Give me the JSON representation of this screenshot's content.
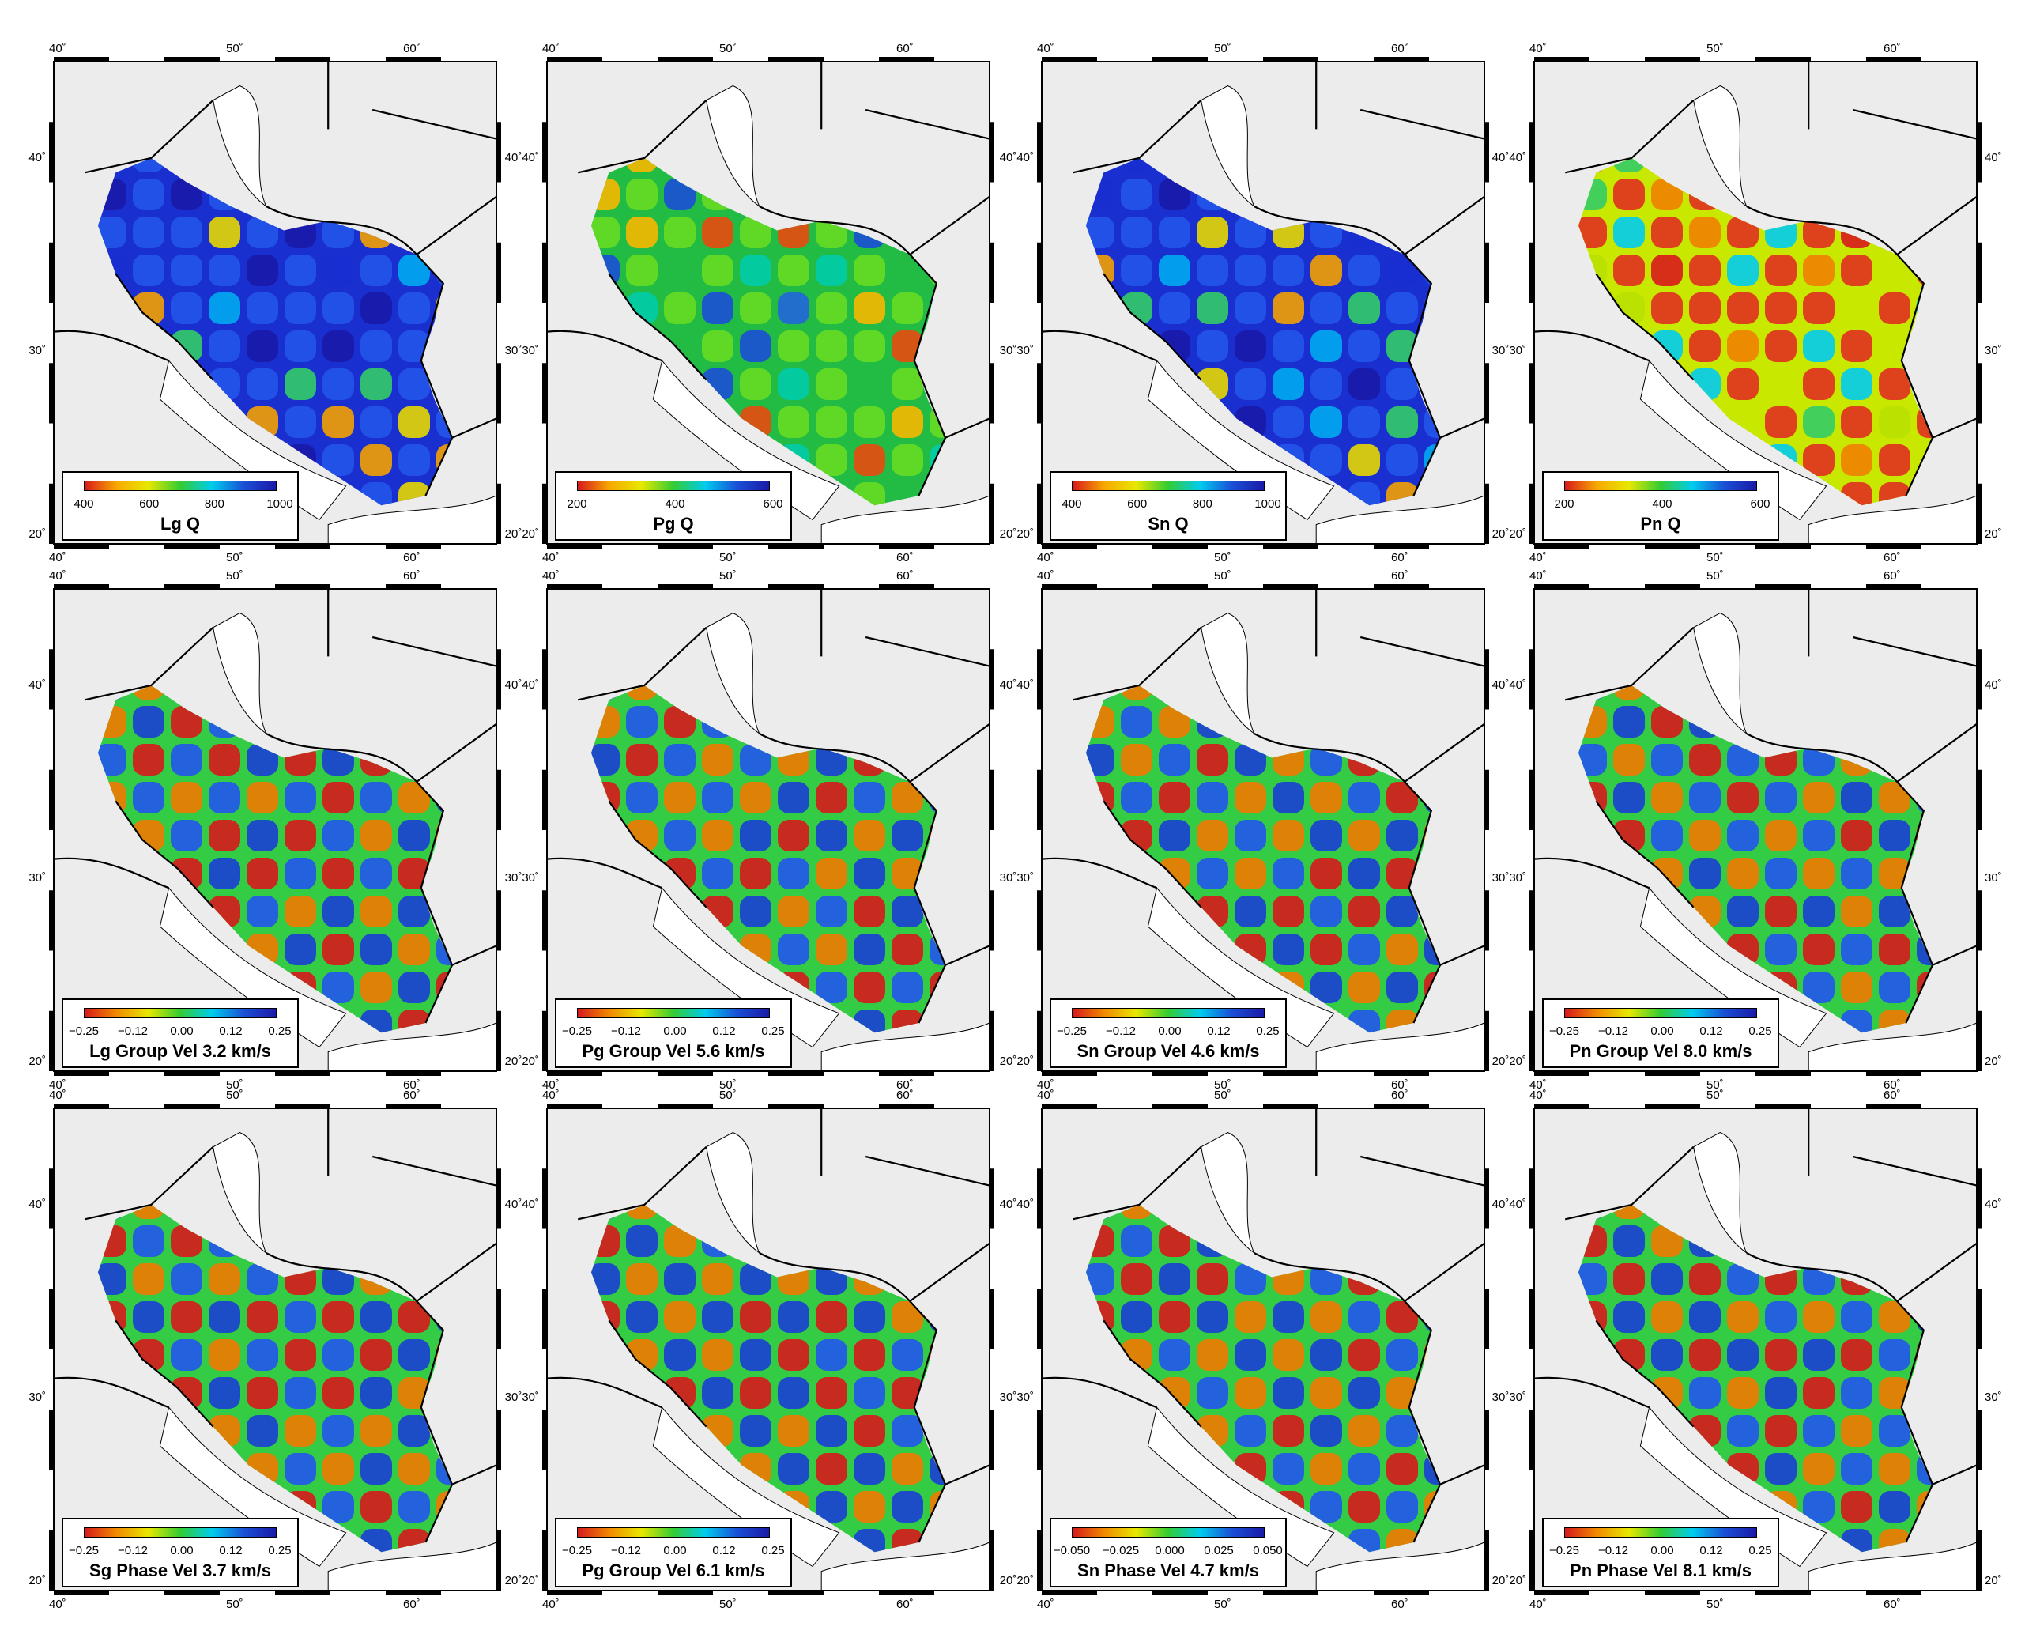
{
  "figure": {
    "panels": [
      {
        "title": "Lg Q",
        "scale_ticks": [
          "400",
          "600",
          "800",
          "1000"
        ],
        "palette": "q",
        "hue_bias": "blue",
        "top_ticks": [
          "40˚",
          "50˚",
          "60˚"
        ],
        "bottom_ticks": [
          "40˚",
          "50˚",
          "60˚"
        ],
        "left_ticks": [
          "40˚",
          "30˚",
          "20˚"
        ],
        "right_ticks": []
      },
      {
        "title": "Pg Q",
        "scale_ticks": [
          "200",
          "400",
          "600"
        ],
        "palette": "q",
        "hue_bias": "green",
        "top_ticks": [
          "40˚",
          "50˚",
          "60˚"
        ],
        "bottom_ticks": [
          "40˚",
          "50˚",
          "60˚"
        ],
        "left_ticks": [
          "40˚40˚",
          "30˚30˚",
          "20˚20˚"
        ],
        "right_ticks": []
      },
      {
        "title": "Sn Q",
        "scale_ticks": [
          "400",
          "600",
          "800",
          "1000"
        ],
        "palette": "q",
        "hue_bias": "blue",
        "top_ticks": [
          "40˚",
          "50˚",
          "60˚"
        ],
        "bottom_ticks": [
          "40˚",
          "50˚",
          "60˚"
        ],
        "left_ticks": [
          "40˚40˚",
          "30˚30˚",
          "20˚20˚"
        ],
        "right_ticks": []
      },
      {
        "title": "Pn Q",
        "scale_ticks": [
          "200",
          "400",
          "600"
        ],
        "palette": "q",
        "hue_bias": "yellow",
        "top_ticks": [
          "40˚",
          "50˚",
          "60˚"
        ],
        "bottom_ticks": [
          "40˚",
          "50˚",
          "60˚"
        ],
        "left_ticks": [
          "40˚40˚",
          "30˚30˚",
          "20˚20˚"
        ],
        "right_ticks": [
          "40˚",
          "30˚",
          "20˚"
        ]
      },
      {
        "title": "Lg Group Vel 3.2 km/s",
        "scale_ticks": [
          "−0.25",
          "−0.12",
          "0.00",
          "0.12",
          "0.25"
        ],
        "palette": "vel",
        "hue_bias": "mixed",
        "top_ticks": [
          "40˚",
          "50˚",
          "60˚"
        ],
        "bottom_ticks": [
          "40˚",
          "50˚",
          "60˚"
        ],
        "left_ticks": [
          "40˚",
          "30˚",
          "20˚"
        ],
        "right_ticks": []
      },
      {
        "title": "Pg Group Vel 5.6 km/s",
        "scale_ticks": [
          "−0.25",
          "−0.12",
          "0.00",
          "0.12",
          "0.25"
        ],
        "palette": "vel",
        "hue_bias": "mixed",
        "top_ticks": [
          "40˚",
          "50˚",
          "60˚"
        ],
        "bottom_ticks": [
          "40˚",
          "50˚",
          "60˚"
        ],
        "left_ticks": [
          "40˚40˚",
          "30˚30˚",
          "20˚20˚"
        ],
        "right_ticks": []
      },
      {
        "title": "Sn Group Vel 4.6 km/s",
        "scale_ticks": [
          "−0.25",
          "−0.12",
          "0.00",
          "0.12",
          "0.25"
        ],
        "palette": "vel",
        "hue_bias": "mixed",
        "top_ticks": [
          "40˚",
          "50˚",
          "60˚"
        ],
        "bottom_ticks": [
          "40˚",
          "50˚",
          "60˚"
        ],
        "left_ticks": [
          "40˚40˚",
          "30˚30˚",
          "20˚20˚"
        ],
        "right_ticks": []
      },
      {
        "title": "Pn Group Vel 8.0 km/s",
        "scale_ticks": [
          "−0.25",
          "−0.12",
          "0.00",
          "0.12",
          "0.25"
        ],
        "palette": "vel",
        "hue_bias": "mixed",
        "top_ticks": [
          "40˚",
          "50˚",
          "60˚"
        ],
        "bottom_ticks": [
          "40˚",
          "50˚",
          "60˚"
        ],
        "left_ticks": [
          "40˚40˚",
          "30˚30˚",
          "20˚20˚"
        ],
        "right_ticks": [
          "40˚",
          "30˚",
          "20˚"
        ]
      },
      {
        "title": "Sg Phase Vel 3.7 km/s",
        "scale_ticks": [
          "−0.25",
          "−0.12",
          "0.00",
          "0.12",
          "0.25"
        ],
        "palette": "vel",
        "hue_bias": "mixed",
        "top_ticks": [
          "40˚",
          "50˚",
          "60˚"
        ],
        "bottom_ticks": [
          "40˚",
          "50˚",
          "60˚"
        ],
        "left_ticks": [
          "40˚",
          "30˚",
          "20˚"
        ],
        "right_ticks": []
      },
      {
        "title": "Pg Group Vel 6.1 km/s",
        "scale_ticks": [
          "−0.25",
          "−0.12",
          "0.00",
          "0.12",
          "0.25"
        ],
        "palette": "vel",
        "hue_bias": "mixed",
        "top_ticks": [
          "40˚",
          "50˚",
          "60˚"
        ],
        "bottom_ticks": [
          "40˚",
          "50˚",
          "60˚"
        ],
        "left_ticks": [
          "40˚40˚",
          "30˚30˚",
          "20˚20˚"
        ],
        "right_ticks": []
      },
      {
        "title": "Sn Phase Vel 4.7 km/s",
        "scale_ticks": [
          "−0.050",
          "−0.025",
          "0.000",
          "0.025",
          "0.050"
        ],
        "palette": "vel",
        "hue_bias": "mixed",
        "top_ticks": [
          "40˚",
          "50˚",
          "60˚"
        ],
        "bottom_ticks": [
          "40˚",
          "50˚",
          "60˚"
        ],
        "left_ticks": [
          "40˚40˚",
          "30˚30˚",
          "20˚20˚"
        ],
        "right_ticks": []
      },
      {
        "title": "Pn Phase Vel 8.1 km/s",
        "scale_ticks": [
          "−0.25",
          "−0.12",
          "0.00",
          "0.12",
          "0.25"
        ],
        "palette": "vel",
        "hue_bias": "mixed",
        "top_ticks": [
          "40˚",
          "50˚",
          "60˚"
        ],
        "bottom_ticks": [
          "40˚",
          "50˚",
          "60˚"
        ],
        "left_ticks": [
          "40˚40˚",
          "30˚30˚",
          "20˚20˚"
        ],
        "right_ticks": [
          "40˚",
          "30˚",
          "20˚"
        ]
      }
    ],
    "colors": {
      "q_scale": [
        "#d7191c",
        "#f7a800",
        "#e8e800",
        "#33cc33",
        "#00ccee",
        "#1a4fd6",
        "#1a1aa8"
      ],
      "vel_scale": [
        "#d7191c",
        "#f08a00",
        "#e8e800",
        "#33cc33",
        "#00ccee",
        "#1a4fd6",
        "#1a1aa8"
      ],
      "land": "#ececec",
      "border": "#000000"
    }
  }
}
